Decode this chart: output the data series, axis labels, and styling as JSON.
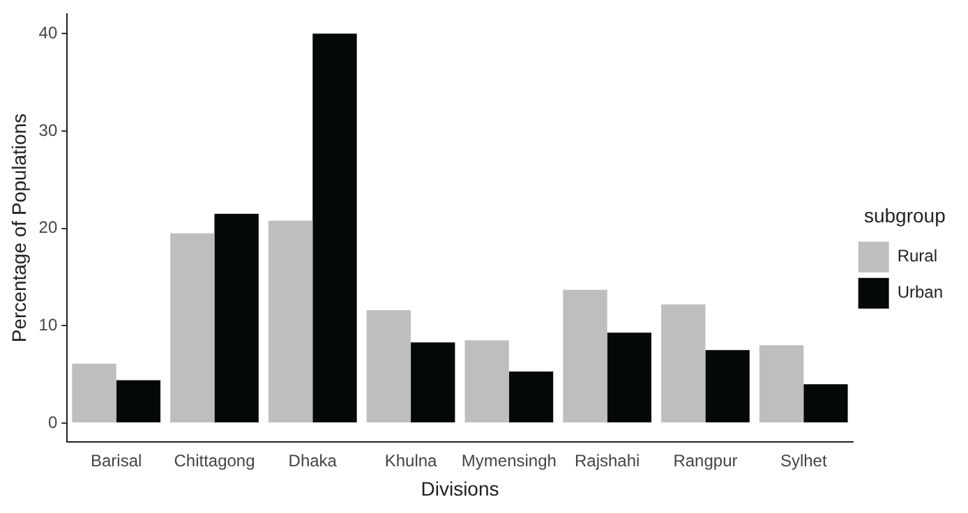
{
  "chart_data": {
    "type": "bar",
    "xlabel": "Divisions",
    "ylabel": "Percentage of Populations",
    "legend_title": "subgroup",
    "categories": [
      "Barisal",
      "Chittagong",
      "Dhaka",
      "Khulna",
      "Mymensingh",
      "Rajshahi",
      "Rangpur",
      "Sylhet"
    ],
    "series": [
      {
        "name": "Rural",
        "color": "#bebebe",
        "values": [
          6.1,
          19.5,
          20.8,
          11.6,
          8.5,
          13.7,
          12.2,
          8.0
        ]
      },
      {
        "name": "Urban",
        "color": "#050809",
        "values": [
          4.4,
          21.5,
          40.0,
          8.3,
          5.3,
          9.3,
          7.5,
          4.0
        ]
      }
    ],
    "ylim": [
      -1.9,
      42
    ],
    "yticks": [
      0,
      10,
      20,
      30,
      40
    ],
    "grid": false,
    "legend": "right"
  }
}
